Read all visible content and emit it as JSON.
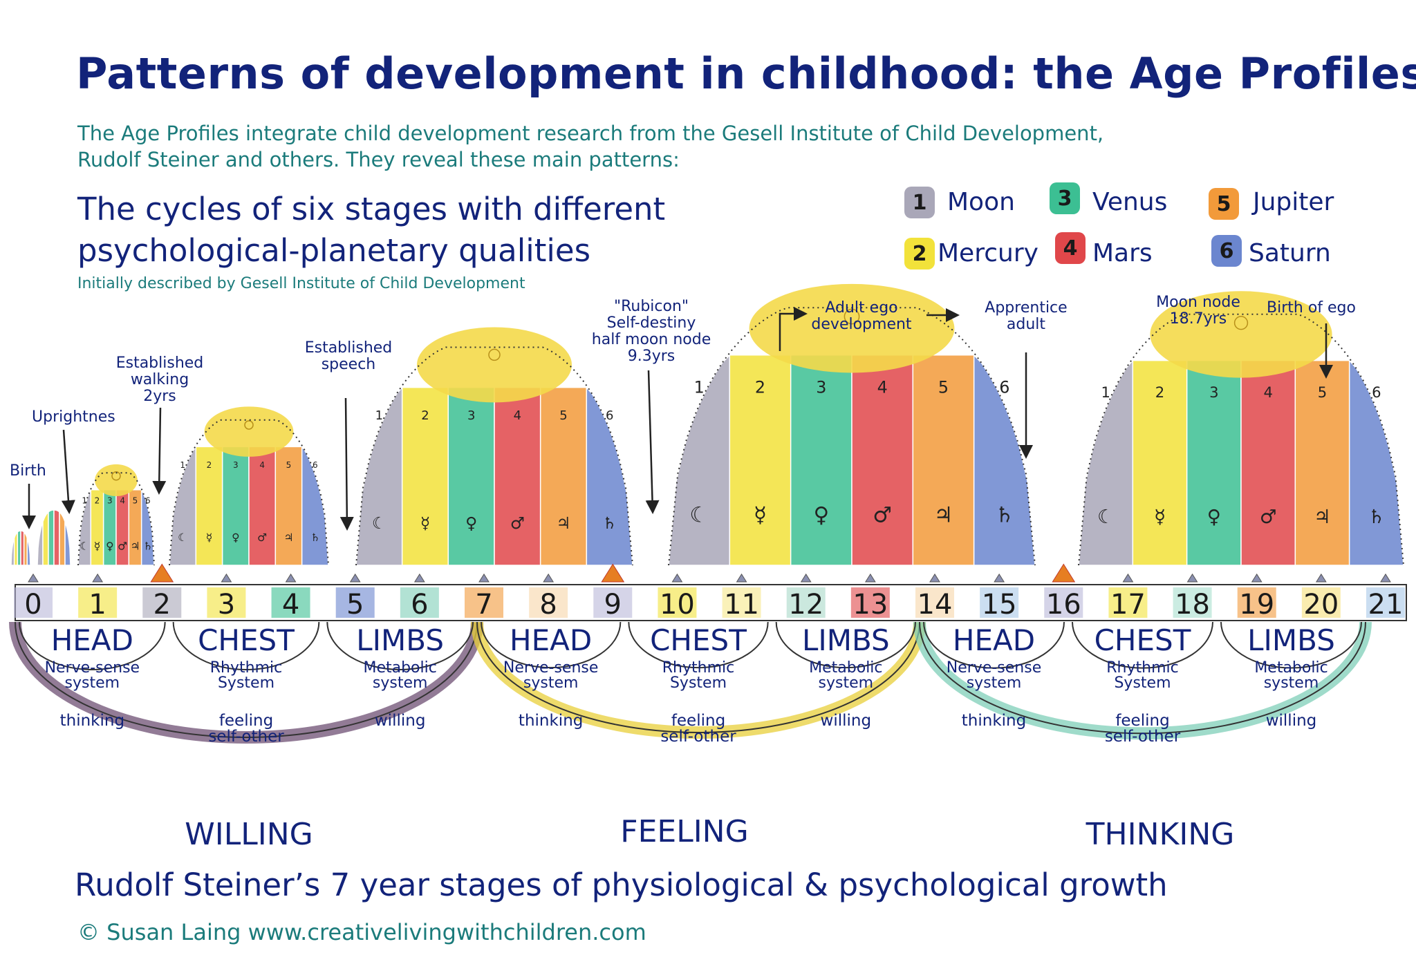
{
  "title": "Patterns of development in childhood: the Age Profiles",
  "intro": {
    "line1": "The Age Profiles integrate child development research from the Gesell Institute of Child Development,",
    "line2": "Rudolf Steiner and others. They reveal these main patterns:"
  },
  "cycles": {
    "line1": "The cycles of six stages with different",
    "line2": "psychological-planetary qualities",
    "note": "Initially described by Gesell Institute of Child Development"
  },
  "legend": [
    {
      "num": "1",
      "label": "Moon",
      "color": "#a9a7b8"
    },
    {
      "num": "2",
      "label": "Mercury",
      "color": "#f2e23a"
    },
    {
      "num": "3",
      "label": "Venus",
      "color": "#3cbf93"
    },
    {
      "num": "4",
      "label": "Mars",
      "color": "#e0474a"
    },
    {
      "num": "5",
      "label": "Jupiter",
      "color": "#f29a3a"
    },
    {
      "num": "6",
      "label": "Saturn",
      "color": "#6b86cf"
    }
  ],
  "annotations": {
    "birth": "Birth",
    "uprightness": "Uprightnes",
    "walking": [
      "Established",
      "walking",
      "2yrs"
    ],
    "speech": [
      "Established",
      "speech"
    ],
    "rubicon": [
      "\"Rubicon\"",
      "Self-destiny",
      "half moon node",
      "9.3yrs"
    ],
    "adult_ego": [
      "Adult ego",
      "development"
    ],
    "apprentice": [
      "Apprentice",
      "adult"
    ],
    "moon_node": [
      "Moon node",
      "18.7yrs"
    ],
    "birth_of_ego": "Birth of ego"
  },
  "ages": [
    "0",
    "1",
    "2",
    "3",
    "4",
    "5",
    "6",
    "7",
    "8",
    "9",
    "10",
    "11",
    "12",
    "13",
    "14",
    "15",
    "16",
    "17",
    "18",
    "19",
    "20",
    "21"
  ],
  "bands": [
    {
      "label": "HEAD",
      "sub": [
        "Nerve-sense",
        "system"
      ],
      "quality": [
        "thinking"
      ]
    },
    {
      "label": "CHEST",
      "sub": [
        "Rhythmic",
        "System"
      ],
      "quality": [
        "feeling",
        "self-other"
      ]
    },
    {
      "label": "LIMBS",
      "sub": [
        "Metabolic",
        "system"
      ],
      "quality": [
        "willing"
      ]
    },
    {
      "label": "HEAD",
      "sub": [
        "Nerve-sense",
        "system"
      ],
      "quality": [
        "thinking"
      ]
    },
    {
      "label": "CHEST",
      "sub": [
        "Rhythmic",
        "System"
      ],
      "quality": [
        "feeling",
        "self-other"
      ]
    },
    {
      "label": "LIMBS",
      "sub": [
        "Metabolic",
        "system"
      ],
      "quality": [
        "willing"
      ]
    },
    {
      "label": "HEAD",
      "sub": [
        "Nerve-sense",
        "system"
      ],
      "quality": [
        "thinking"
      ]
    },
    {
      "label": "CHEST",
      "sub": [
        "Rhythmic",
        "System"
      ],
      "quality": [
        "feeling",
        "self-other"
      ]
    },
    {
      "label": "LIMBS",
      "sub": [
        "Metabolic",
        "system"
      ],
      "quality": [
        "willing"
      ]
    }
  ],
  "seven_year": [
    {
      "label": "WILLING",
      "color": "#6e4f73"
    },
    {
      "label": "FEELING",
      "color": "#e8cf3a"
    },
    {
      "label": "THINKING",
      "color": "#7fcfb8"
    }
  ],
  "dome_numbers": [
    "1",
    "2",
    "3",
    "4",
    "5",
    "6"
  ],
  "planet_glyphs": [
    "☾",
    "☿",
    "♀",
    "♂",
    "♃",
    "♄"
  ],
  "steiner": "Rudolf Steiner’s 7 year stages of physiological & psychological growth",
  "credit": "© Susan Laing   www.creativelivingwithchildren.com"
}
